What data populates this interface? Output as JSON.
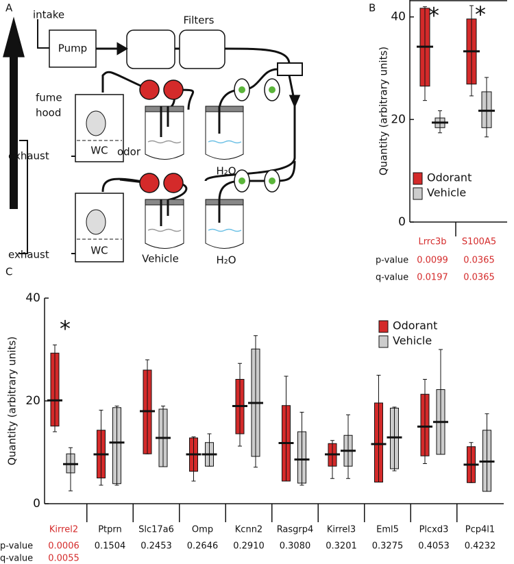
{
  "panel_labels": [
    "A",
    "B",
    "C"
  ],
  "diagram": {
    "intake": "intake",
    "pump": "Pump",
    "filters": "Filters",
    "fume_hood": [
      "fume",
      "hood"
    ],
    "exhaust_top": "exhaust",
    "exhaust_bottom": "exhaust",
    "wc_top": "WC",
    "wc_bottom": "WC",
    "odor": "odor",
    "water_top": "H₂O",
    "vehicle": "Vehicle",
    "water_bottom": "H₂O"
  },
  "chart_data": [
    {
      "type": "box",
      "y_label": "Quantity (arbitrary units)",
      "categories": [
        "Lrrc3b",
        "S100A5"
      ],
      "ylim": [
        0,
        43.3
      ],
      "yticks": [
        0,
        20,
        40
      ],
      "legend_position": "bottom",
      "highlight_color": "#d42a2a",
      "significance": [
        "*",
        "*"
      ],
      "p_label": "p-value",
      "q_label": "q-value",
      "p_values": [
        "0.0099",
        "0.0365"
      ],
      "q_values": [
        "0.0197",
        "0.0365"
      ],
      "series": [
        {
          "name": "Odorant",
          "color": "#d42a2a",
          "min": [
            23.7,
            24.6
          ],
          "q1": [
            26.5,
            26.9
          ],
          "median": [
            34.2,
            33.3
          ],
          "q3": [
            41.7,
            39.6
          ],
          "max": [
            42.0,
            42.2
          ]
        },
        {
          "name": "Vehicle",
          "color": "#cccccc",
          "min": [
            17.4,
            16.6
          ],
          "q1": [
            18.4,
            18.4
          ],
          "median": [
            19.4,
            21.7
          ],
          "q3": [
            20.3,
            25.4
          ],
          "max": [
            21.7,
            28.2
          ]
        }
      ]
    },
    {
      "type": "box",
      "y_label": "Quantity (arbitrary units)",
      "categories": [
        "Kirrel2",
        "Ptprn",
        "Slc17a6",
        "Omp",
        "Kcnn2",
        "Rasgrp4",
        "Kirrel3",
        "Eml5",
        "Plcxd3",
        "Pcp4l1"
      ],
      "ylim": [
        0,
        40
      ],
      "yticks": [
        0,
        20,
        40
      ],
      "legend_position": "top-right",
      "highlight_color": "#d42a2a",
      "significance": [
        "*",
        null,
        null,
        null,
        null,
        null,
        null,
        null,
        null,
        null
      ],
      "p_label": "p-value",
      "q_label": "q-value",
      "p_values": [
        "0.0006",
        "0.1504",
        "0.2453",
        "0.2646",
        "0.2910",
        "0.3080",
        "0.3201",
        "0.3275",
        "0.4053",
        "0.4232"
      ],
      "q_values": [
        "0.0055",
        null,
        null,
        null,
        null,
        null,
        null,
        null,
        null,
        null
      ],
      "series": [
        {
          "name": "Odorant",
          "color": "#d42a2a",
          "min": [
            14.0,
            3.6,
            9.7,
            4.4,
            11.2,
            4.4,
            4.9,
            4.2,
            7.8,
            4.1
          ],
          "q1": [
            15.1,
            5.0,
            9.7,
            6.3,
            13.6,
            4.4,
            7.3,
            4.2,
            9.3,
            4.1
          ],
          "median": [
            20.1,
            9.6,
            18.0,
            9.6,
            19.0,
            11.8,
            9.6,
            11.6,
            15.0,
            7.6
          ],
          "q3": [
            29.3,
            14.3,
            26.0,
            12.8,
            24.2,
            19.1,
            11.7,
            19.6,
            21.3,
            11.1
          ],
          "max": [
            30.9,
            18.2,
            28.0,
            13.0,
            27.3,
            24.8,
            12.3,
            25.0,
            24.2,
            11.9
          ]
        },
        {
          "name": "Vehicle",
          "color": "#cccccc",
          "min": [
            2.5,
            3.6,
            7.2,
            7.3,
            7.1,
            3.6,
            4.9,
            6.4,
            9.6,
            2.4
          ],
          "q1": [
            6.0,
            3.9,
            7.2,
            7.3,
            9.2,
            4.0,
            7.3,
            6.8,
            9.6,
            2.4
          ],
          "median": [
            7.7,
            11.9,
            12.8,
            9.6,
            19.6,
            8.6,
            10.3,
            12.9,
            15.9,
            8.2
          ],
          "q3": [
            9.7,
            18.7,
            18.4,
            11.9,
            30.1,
            14.0,
            13.3,
            18.6,
            22.2,
            14.3
          ],
          "max": [
            10.9,
            19.0,
            19.0,
            13.6,
            32.7,
            17.8,
            17.3,
            18.8,
            30.0,
            17.5
          ]
        }
      ]
    }
  ]
}
